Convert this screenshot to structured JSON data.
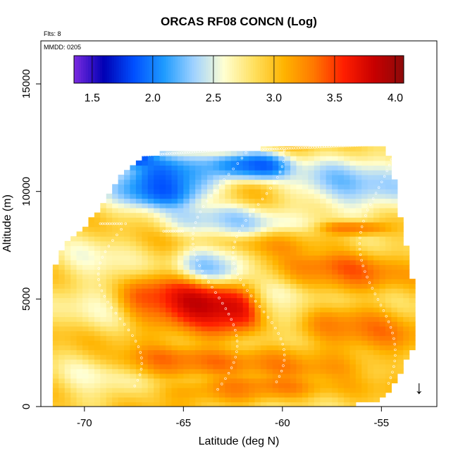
{
  "chart_data": {
    "type": "heatmap",
    "title": "ORCAS RF08 CONCN (Log)",
    "flights_note": "Flts: 8",
    "date_note": "MMDD: 0205",
    "xlabel": "Latitude (deg N)",
    "ylabel": "Altitude (m)",
    "xlim": [
      -72.2,
      -52.2
    ],
    "ylim": [
      0,
      17000
    ],
    "x_ticks": [
      -70,
      -65,
      -60,
      -55
    ],
    "x_tick_labels": [
      "-70",
      "-65",
      "-60",
      "-55"
    ],
    "y_ticks": [
      0,
      5000,
      10000,
      15000
    ],
    "y_tick_labels": [
      "0",
      "5000",
      "10000",
      "15000"
    ],
    "colorbar": {
      "range": [
        1.35,
        4.07
      ],
      "ticks": [
        1.5,
        2.0,
        2.5,
        3.0,
        3.5,
        4.0
      ],
      "tick_labels": [
        "1.5",
        "2.0",
        "2.5",
        "3.0",
        "3.5",
        "4.0"
      ],
      "colors": [
        "#7b2be0",
        "#0000b4",
        "#0050ff",
        "#1e9bff",
        "#a0d2ff",
        "#ffffd2",
        "#ffe060",
        "#ffb400",
        "#ff7800",
        "#ff1e00",
        "#c80000",
        "#8c0a0a"
      ]
    },
    "grid": false,
    "arrow_marker": {
      "x": -53.1,
      "y": 700,
      "symbol": "↓"
    },
    "field": {
      "description_values": "log10 concentration field sampled on a lat/alt grid",
      "envelope": [
        {
          "x": -71.5,
          "bottom": 0,
          "top": 6500
        },
        {
          "x": -71.0,
          "bottom": 0,
          "top": 7700
        },
        {
          "x": -70.0,
          "bottom": 0,
          "top": 8300
        },
        {
          "x": -69.0,
          "bottom": 0,
          "top": 9500
        },
        {
          "x": -68.0,
          "bottom": 0,
          "top": 11000
        },
        {
          "x": -67.0,
          "bottom": 0,
          "top": 11700
        },
        {
          "x": -65.0,
          "bottom": 0,
          "top": 11900
        },
        {
          "x": -63.0,
          "bottom": 0,
          "top": 11900
        },
        {
          "x": -61.0,
          "bottom": 0,
          "top": 12000
        },
        {
          "x": -59.0,
          "bottom": 0,
          "top": 12100
        },
        {
          "x": -57.0,
          "bottom": 0,
          "top": 12200
        },
        {
          "x": -55.0,
          "bottom": 300,
          "top": 12200
        },
        {
          "x": -54.5,
          "bottom": 700,
          "top": 11500
        },
        {
          "x": -54.0,
          "bottom": 1700,
          "top": 8500
        },
        {
          "x": -53.5,
          "bottom": 2500,
          "top": 6500
        },
        {
          "x": -53.2,
          "bottom": 3200,
          "top": 3500
        }
      ],
      "features": [
        {
          "lat": -64.5,
          "alt": 4700,
          "value": 3.95,
          "sx": 1.8,
          "sy": 900
        },
        {
          "lat": -62.8,
          "alt": 4300,
          "value": 3.85,
          "sx": 1.2,
          "sy": 800
        },
        {
          "lat": -66.5,
          "alt": 5000,
          "value": 3.45,
          "sx": 1.5,
          "sy": 800
        },
        {
          "lat": -57.0,
          "alt": 6200,
          "value": 3.4,
          "sx": 2.0,
          "sy": 700
        },
        {
          "lat": -56.0,
          "alt": 3500,
          "value": 3.3,
          "sx": 2.0,
          "sy": 900
        },
        {
          "lat": -59.0,
          "alt": 2200,
          "value": 3.3,
          "sx": 3.0,
          "sy": 500
        },
        {
          "lat": -62.0,
          "alt": 800,
          "value": 3.5,
          "sx": 2.5,
          "sy": 400
        },
        {
          "lat": -65.5,
          "alt": 2000,
          "value": 3.35,
          "sx": 2.5,
          "sy": 500
        },
        {
          "lat": -56.5,
          "alt": 8300,
          "value": 3.6,
          "sx": 1.2,
          "sy": 250
        },
        {
          "lat": -59.5,
          "alt": 7700,
          "value": 3.2,
          "sx": 2.0,
          "sy": 400
        },
        {
          "lat": -66.0,
          "alt": 10500,
          "value": 1.45,
          "sx": 2.0,
          "sy": 900
        },
        {
          "lat": -68.0,
          "alt": 11500,
          "value": 1.35,
          "sx": 1.0,
          "sy": 300
        },
        {
          "lat": -61.5,
          "alt": 11200,
          "value": 1.7,
          "sx": 1.5,
          "sy": 500
        },
        {
          "lat": -56.5,
          "alt": 10300,
          "value": 2.2,
          "sx": 2.5,
          "sy": 1200
        },
        {
          "lat": -63.0,
          "alt": 8600,
          "value": 2.3,
          "sx": 2.5,
          "sy": 600
        },
        {
          "lat": -63.5,
          "alt": 6700,
          "value": 2.2,
          "sx": 1.3,
          "sy": 700
        },
        {
          "lat": -69.5,
          "alt": 6000,
          "value": 2.6,
          "sx": 1.5,
          "sy": 1800
        },
        {
          "lat": -60.0,
          "alt": 4700,
          "value": 2.6,
          "sx": 1.2,
          "sy": 700
        },
        {
          "lat": -69.5,
          "alt": 1000,
          "value": 2.6,
          "sx": 1.5,
          "sy": 900
        }
      ],
      "background_value": 2.95
    }
  }
}
